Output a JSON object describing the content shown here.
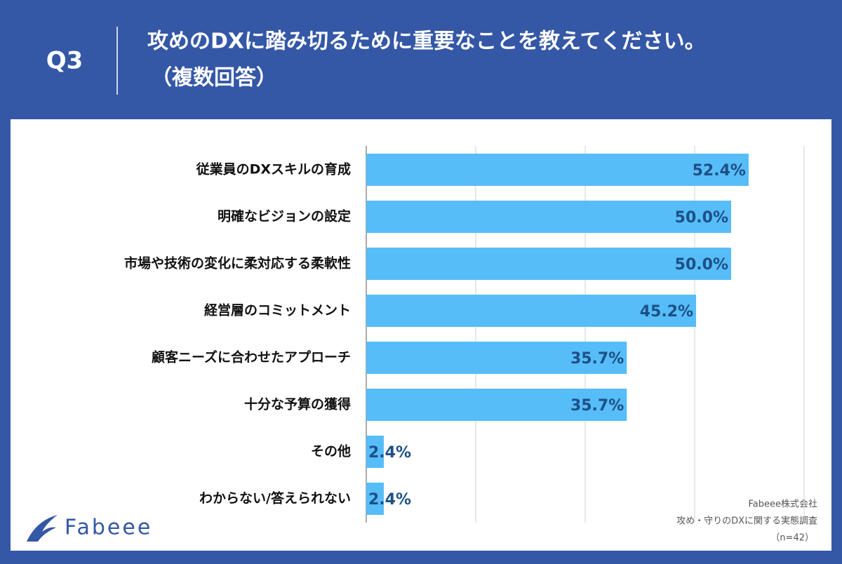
{
  "chart_data": {
    "type": "bar",
    "orientation": "horizontal",
    "question": "Q3",
    "title": "攻めのDXに踏み切るために重要なことを教えてください。",
    "subtitle": "（複数回答）",
    "categories": [
      "従業員のDXスキルの育成",
      "明確なビジョンの設定",
      "市場や技術の変化に柔対応する柔軟性",
      "経営層のコミットメント",
      "顧客ニーズに合わせたアプローチ",
      "十分な予算の獲得",
      "その他",
      "わからない/答えられない"
    ],
    "values": [
      52.4,
      50.0,
      50.0,
      45.2,
      35.7,
      35.7,
      2.4,
      2.4
    ],
    "value_labels": [
      "52.4%",
      "50.0%",
      "50.0%",
      "45.2%",
      "35.7%",
      "35.7%",
      "2.4%",
      "2.4%"
    ],
    "color": "#56bdf8",
    "xlim": [
      0,
      60
    ],
    "xticks": [
      0,
      15,
      30,
      45,
      60
    ],
    "grid": true,
    "logo": "Fabeee",
    "source": [
      "Fabeee株式会社",
      "攻め・守りのDXに関する実態調査",
      "（n=42）"
    ]
  }
}
